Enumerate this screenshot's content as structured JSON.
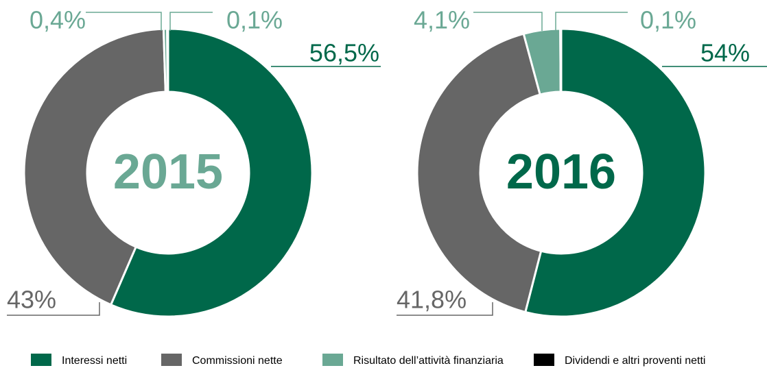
{
  "chart_data": [
    {
      "type": "pie",
      "title": "2015",
      "title_color": "#6aa894",
      "categories": [
        "Interessi netti",
        "Commissioni nette",
        "Risultato dell’attività finanziaria",
        "Dividendi e altri proventi netti"
      ],
      "values": [
        56.5,
        43,
        0.4,
        0.1
      ],
      "value_labels": [
        "56,5%",
        "43%",
        "0,4%",
        "0,1%"
      ],
      "colors": [
        "#00684a",
        "#666666",
        "#6aa894",
        "#000000"
      ]
    },
    {
      "type": "pie",
      "title": "2016",
      "title_color": "#00684a",
      "categories": [
        "Interessi netti",
        "Commissioni nette",
        "Risultato dell’attività finanziaria",
        "Dividendi e altri proventi netti"
      ],
      "values": [
        54,
        41.8,
        4.1,
        0.1
      ],
      "value_labels": [
        "54%",
        "41,8%",
        "4,1%",
        "0,1%"
      ],
      "colors": [
        "#00684a",
        "#666666",
        "#6aa894",
        "#000000"
      ]
    }
  ]
}
